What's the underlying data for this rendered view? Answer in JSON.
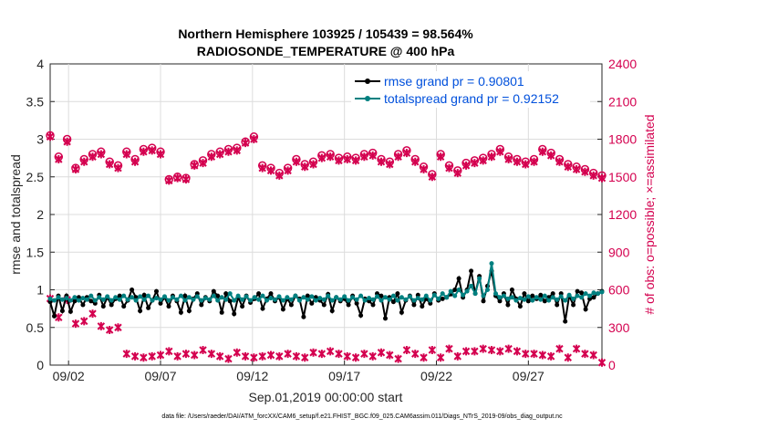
{
  "chart_data": {
    "type": "line",
    "title_line1": "Northern Hemisphere 103925 / 105439 = 98.564%",
    "title_line2": "RADIOSONDE_TEMPERATURE @ 400 hPa",
    "ylabel_left": "rmse and totalspread",
    "ylabel_right": "# of obs: o=possible; ×=assimilated",
    "xlabel": "Sep.01,2019 00:00:00 start",
    "footer": "data file: /Users/raeder/DAI/ATM_forcXX/CAM6_setup/f.e21.FHIST_BGC.f09_025.CAM6assim.011/Diags_NTrS_2019-09/obs_diag_output.nc",
    "ylim_left": [
      0,
      4
    ],
    "ylim_right": [
      0,
      2400
    ],
    "xlim": [
      1,
      31
    ],
    "left_ticks": [
      "0",
      "0.5",
      "1",
      "1.5",
      "2",
      "2.5",
      "3",
      "3.5",
      "4"
    ],
    "right_ticks": [
      "0",
      "300",
      "600",
      "900",
      "1200",
      "1500",
      "1800",
      "2100",
      "2400"
    ],
    "x_ticks": [
      {
        "day": 2,
        "label": "09/02"
      },
      {
        "day": 7,
        "label": "09/07"
      },
      {
        "day": 12,
        "label": "09/12"
      },
      {
        "day": 17,
        "label": "09/17"
      },
      {
        "day": 22,
        "label": "09/22"
      },
      {
        "day": 27,
        "label": "09/27"
      }
    ],
    "series": [
      {
        "name": "rmse",
        "legend": "rmse grand pr = 0.90801",
        "color": "#000000",
        "values": [
          0.84,
          0.65,
          0.92,
          0.72,
          0.92,
          0.71,
          0.85,
          0.9,
          0.8,
          0.9,
          0.85,
          0.82,
          0.93,
          0.78,
          0.9,
          0.8,
          0.88,
          0.92,
          0.78,
          0.86,
          1.0,
          0.9,
          0.72,
          0.93,
          0.76,
          0.86,
          0.98,
          0.82,
          0.9,
          0.78,
          0.92,
          0.85,
          0.7,
          0.92,
          0.72,
          0.88,
          0.95,
          0.8,
          0.9,
          0.85,
          0.98,
          0.92,
          0.7,
          0.95,
          0.85,
          0.68,
          0.9,
          0.78,
          0.92,
          0.83,
          0.88,
          0.95,
          0.75,
          0.88,
          0.95,
          0.85,
          0.9,
          0.74,
          0.88,
          0.8,
          0.92,
          0.88,
          0.64,
          0.92,
          0.82,
          0.9,
          0.86,
          0.8,
          0.94,
          0.72,
          0.9,
          0.85,
          0.88,
          0.8,
          0.92,
          0.82,
          0.66,
          0.88,
          0.85,
          0.8,
          0.95,
          0.92,
          0.62,
          0.9,
          0.84,
          0.95,
          0.7,
          0.86,
          0.92,
          0.8,
          0.93,
          0.78,
          0.88,
          0.82,
          0.95,
          0.86,
          0.88,
          0.9,
          0.94,
          1.0,
          1.15,
          0.9,
          1.0,
          1.25,
          0.95,
          1.18,
          0.85,
          1.05,
          1.25,
          0.92,
          0.85,
          0.95,
          0.8,
          1.0,
          0.88,
          0.78,
          0.95,
          0.85,
          0.92,
          0.88,
          0.93,
          0.85,
          0.9,
          0.95,
          0.8,
          0.95,
          0.58,
          0.92,
          0.8,
          0.98,
          0.96,
          0.74,
          0.88,
          0.9,
          0.95,
          0.98
        ]
      },
      {
        "name": "totalspread",
        "legend": "totalspread grand pr = 0.92152",
        "color": "#008080",
        "values": [
          0.88,
          0.86,
          0.9,
          0.87,
          0.89,
          0.86,
          0.9,
          0.86,
          0.89,
          0.87,
          0.92,
          0.86,
          0.9,
          0.87,
          0.91,
          0.86,
          0.9,
          0.87,
          0.92,
          0.87,
          0.9,
          0.86,
          0.91,
          0.87,
          0.92,
          0.86,
          0.89,
          0.87,
          0.91,
          0.86,
          0.9,
          0.87,
          0.92,
          0.86,
          0.9,
          0.87,
          0.91,
          0.86,
          0.89,
          0.87,
          0.92,
          0.86,
          0.9,
          0.87,
          0.95,
          0.86,
          0.92,
          0.87,
          0.91,
          0.86,
          0.9,
          0.87,
          0.92,
          0.86,
          0.89,
          0.87,
          0.91,
          0.86,
          0.9,
          0.87,
          0.92,
          0.86,
          0.9,
          0.87,
          0.91,
          0.86,
          0.89,
          0.87,
          0.92,
          0.86,
          0.9,
          0.87,
          0.91,
          0.86,
          0.9,
          0.87,
          0.92,
          0.86,
          0.89,
          0.87,
          0.91,
          0.86,
          0.9,
          0.87,
          0.92,
          0.86,
          0.9,
          0.87,
          0.91,
          0.86,
          0.89,
          0.87,
          0.92,
          0.86,
          0.93,
          0.88,
          0.95,
          0.9,
          0.98,
          0.92,
          1.0,
          0.93,
          0.98,
          1.05,
          0.95,
          1.15,
          0.92,
          1.0,
          1.35,
          0.95,
          0.9,
          0.92,
          0.88,
          0.9,
          0.86,
          0.89,
          0.87,
          0.91,
          0.86,
          0.9,
          0.87,
          0.92,
          0.86,
          0.9,
          0.87,
          0.91,
          0.86,
          0.93,
          0.88,
          0.92,
          0.9,
          0.95,
          0.92,
          0.96,
          0.95,
          0.97
        ]
      },
      {
        "name": "obs possible",
        "marker": "o",
        "color": "#d4004f",
        "axis": "right",
        "values": [
          1830,
          1660,
          1800,
          1570,
          1640,
          1680,
          1700,
          1620,
          1590,
          1700,
          1640,
          1720,
          1730,
          1700,
          1480,
          1500,
          1490,
          1600,
          1630,
          1680,
          1700,
          1720,
          1730,
          1780,
          1820,
          1590,
          1570,
          1530,
          1570,
          1640,
          1600,
          1620,
          1670,
          1680,
          1650,
          1660,
          1650,
          1680,
          1690,
          1640,
          1620,
          1680,
          1710,
          1640,
          1580,
          1520,
          1680,
          1590,
          1550,
          1610,
          1630,
          1650,
          1680,
          1720,
          1660,
          1640,
          1620,
          1640,
          1720,
          1690,
          1640,
          1600,
          1580,
          1560,
          1530,
          1510
        ]
      },
      {
        "name": "obs assimilated",
        "marker": "x",
        "color": "#d4004f",
        "axis": "right",
        "values": [
          1820,
          1640,
          1780,
          1560,
          1620,
          1660,
          1680,
          1600,
          1570,
          1680,
          1620,
          1700,
          1710,
          1680,
          1470,
          1490,
          1480,
          1590,
          1610,
          1660,
          1680,
          1700,
          1710,
          1770,
          1800,
          1570,
          1550,
          1510,
          1550,
          1620,
          1580,
          1600,
          1650,
          1660,
          1630,
          1640,
          1630,
          1660,
          1670,
          1620,
          1600,
          1660,
          1690,
          1620,
          1560,
          1500,
          1660,
          1570,
          1530,
          1590,
          1610,
          1630,
          1660,
          1700,
          1640,
          1620,
          1600,
          1620,
          1700,
          1670,
          1620,
          1580,
          1560,
          1540,
          1510,
          1490
        ]
      },
      {
        "name": "obs assimilated lower",
        "marker": "x",
        "color": "#d4004f",
        "axis": "right",
        "values": [
          530,
          380,
          520,
          330,
          350,
          410,
          310,
          280,
          300,
          90,
          70,
          60,
          70,
          80,
          110,
          70,
          90,
          80,
          120,
          90,
          70,
          50,
          100,
          70,
          60,
          70,
          80,
          70,
          90,
          70,
          60,
          100,
          90,
          110,
          90,
          70,
          60,
          90,
          70,
          100,
          80,
          50,
          120,
          90,
          60,
          120,
          60,
          130,
          70,
          110,
          110,
          130,
          120,
          110,
          130,
          110,
          90,
          90,
          80,
          70,
          130,
          60,
          130,
          90,
          80,
          20
        ]
      }
    ]
  }
}
